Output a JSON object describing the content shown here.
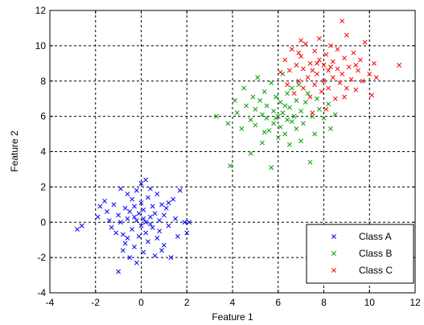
{
  "chart_data": {
    "type": "scatter",
    "xlabel": "Feature 1",
    "ylabel": "Feature 2",
    "xlim": [
      -4,
      12
    ],
    "ylim": [
      -4,
      12
    ],
    "xticks": [
      -4,
      -2,
      0,
      2,
      4,
      6,
      8,
      10,
      12
    ],
    "yticks": [
      -4,
      -2,
      0,
      2,
      4,
      6,
      8,
      10,
      12
    ],
    "grid": true,
    "legend_position": "bottom-right",
    "marker": "x",
    "series": [
      {
        "name": "Class A",
        "color": "#0000ff",
        "points": [
          [
            -2.8,
            -0.4
          ],
          [
            -2.6,
            -0.2
          ],
          [
            -1.9,
            0.3
          ],
          [
            -1.6,
            1.2
          ],
          [
            -1.5,
            0.6
          ],
          [
            -1.4,
            0.1
          ],
          [
            -1.3,
            -0.3
          ],
          [
            -1.2,
            1.0
          ],
          [
            -1.1,
            -0.6
          ],
          [
            -1.0,
            0.4
          ],
          [
            -0.9,
            1.9
          ],
          [
            -0.9,
            0.0
          ],
          [
            -0.8,
            -0.7
          ],
          [
            -0.7,
            0.8
          ],
          [
            -0.7,
            -1.2
          ],
          [
            -0.6,
            1.6
          ],
          [
            -0.6,
            0.2
          ],
          [
            -0.5,
            -2.0
          ],
          [
            -0.5,
            0.6
          ],
          [
            -0.4,
            1.3
          ],
          [
            -0.4,
            -0.4
          ],
          [
            -0.3,
            0.9
          ],
          [
            -0.3,
            -1.4
          ],
          [
            -0.2,
            0.1
          ],
          [
            -0.2,
            1.8
          ],
          [
            -0.1,
            -0.8
          ],
          [
            -0.1,
            0.5
          ],
          [
            0.0,
            2.2
          ],
          [
            0.0,
            -0.2
          ],
          [
            0.0,
            1.1
          ],
          [
            0.1,
            -1.7
          ],
          [
            0.1,
            0.7
          ],
          [
            0.2,
            0.0
          ],
          [
            0.2,
            -0.6
          ],
          [
            0.3,
            1.4
          ],
          [
            0.3,
            -1.1
          ],
          [
            0.4,
            0.3
          ],
          [
            0.4,
            1.9
          ],
          [
            0.5,
            -0.3
          ],
          [
            0.5,
            0.9
          ],
          [
            0.6,
            -1.9
          ],
          [
            0.6,
            0.5
          ],
          [
            0.7,
            -0.9
          ],
          [
            0.7,
            1.6
          ],
          [
            0.8,
            0.1
          ],
          [
            0.8,
            -0.5
          ],
          [
            0.9,
            1.0
          ],
          [
            1.0,
            -1.3
          ],
          [
            1.0,
            0.4
          ],
          [
            1.1,
            0.8
          ],
          [
            1.2,
            -0.2
          ],
          [
            1.3,
            -2.0
          ],
          [
            1.4,
            1.3
          ],
          [
            1.5,
            0.2
          ],
          [
            1.6,
            -0.8
          ],
          [
            1.7,
            1.8
          ],
          [
            1.9,
            0.0
          ],
          [
            2.0,
            -0.6
          ],
          [
            2.1,
            0.0
          ],
          [
            -1.0,
            -2.8
          ],
          [
            -0.8,
            -1.6
          ],
          [
            -0.2,
            -2.3
          ],
          [
            0.2,
            2.4
          ],
          [
            -0.6,
            -0.9
          ],
          [
            0.4,
            -0.1
          ],
          [
            -1.8,
            0.9
          ],
          [
            1.2,
            1.1
          ],
          [
            -0.3,
            0.3
          ],
          [
            0.9,
            -1.6
          ],
          [
            0.1,
            0.2
          ]
        ]
      },
      {
        "name": "Class B",
        "color": "#00a000",
        "points": [
          [
            3.3,
            6.0
          ],
          [
            3.8,
            5.6
          ],
          [
            3.9,
            3.2
          ],
          [
            4.1,
            6.9
          ],
          [
            4.2,
            6.2
          ],
          [
            4.4,
            5.3
          ],
          [
            4.5,
            7.6
          ],
          [
            4.6,
            6.6
          ],
          [
            4.8,
            5.8
          ],
          [
            4.8,
            3.9
          ],
          [
            4.9,
            7.1
          ],
          [
            5.0,
            6.4
          ],
          [
            5.0,
            5.5
          ],
          [
            5.1,
            8.2
          ],
          [
            5.2,
            6.9
          ],
          [
            5.3,
            6.1
          ],
          [
            5.3,
            4.5
          ],
          [
            5.4,
            7.4
          ],
          [
            5.5,
            5.9
          ],
          [
            5.5,
            6.6
          ],
          [
            5.6,
            5.2
          ],
          [
            5.7,
            7.9
          ],
          [
            5.7,
            3.1
          ],
          [
            5.8,
            6.3
          ],
          [
            5.8,
            5.6
          ],
          [
            5.9,
            7.1
          ],
          [
            6.0,
            6.0
          ],
          [
            6.0,
            4.8
          ],
          [
            6.1,
            6.8
          ],
          [
            6.1,
            5.4
          ],
          [
            6.2,
            8.4
          ],
          [
            6.2,
            6.2
          ],
          [
            6.3,
            5.0
          ],
          [
            6.4,
            7.3
          ],
          [
            6.4,
            5.8
          ],
          [
            6.5,
            6.5
          ],
          [
            6.5,
            4.4
          ],
          [
            6.6,
            7.6
          ],
          [
            6.7,
            6.0
          ],
          [
            6.8,
            5.3
          ],
          [
            6.8,
            6.9
          ],
          [
            6.9,
            7.8
          ],
          [
            7.0,
            6.3
          ],
          [
            7.1,
            5.6
          ],
          [
            7.2,
            6.8
          ],
          [
            7.3,
            7.3
          ],
          [
            7.4,
            3.4
          ],
          [
            7.5,
            6.0
          ],
          [
            7.6,
            5.0
          ],
          [
            7.7,
            7.0
          ],
          [
            7.8,
            6.4
          ],
          [
            8.0,
            5.9
          ],
          [
            8.2,
            6.7
          ],
          [
            8.3,
            5.3
          ],
          [
            8.5,
            6.1
          ],
          [
            6.3,
            6.6
          ],
          [
            5.9,
            5.9
          ],
          [
            6.6,
            5.7
          ],
          [
            5.4,
            5.1
          ],
          [
            7.0,
            4.6
          ]
        ]
      },
      {
        "name": "Class C",
        "color": "#ff0000",
        "points": [
          [
            6.1,
            8.5
          ],
          [
            6.3,
            9.2
          ],
          [
            6.4,
            7.8
          ],
          [
            6.5,
            8.6
          ],
          [
            6.6,
            9.8
          ],
          [
            6.7,
            7.3
          ],
          [
            6.8,
            8.9
          ],
          [
            6.9,
            8.0
          ],
          [
            7.0,
            9.4
          ],
          [
            7.1,
            7.6
          ],
          [
            7.1,
            8.7
          ],
          [
            7.2,
            10.1
          ],
          [
            7.3,
            8.2
          ],
          [
            7.4,
            9.0
          ],
          [
            7.4,
            7.1
          ],
          [
            7.5,
            8.6
          ],
          [
            7.6,
            9.7
          ],
          [
            7.6,
            7.8
          ],
          [
            7.7,
            8.4
          ],
          [
            7.8,
            9.2
          ],
          [
            7.8,
            10.4
          ],
          [
            7.9,
            7.4
          ],
          [
            8.0,
            8.9
          ],
          [
            8.0,
            8.0
          ],
          [
            8.1,
            9.5
          ],
          [
            8.2,
            7.6
          ],
          [
            8.2,
            8.6
          ],
          [
            8.3,
            10.0
          ],
          [
            8.4,
            8.2
          ],
          [
            8.4,
            9.1
          ],
          [
            8.5,
            7.0
          ],
          [
            8.6,
            8.7
          ],
          [
            8.6,
            9.8
          ],
          [
            8.7,
            7.9
          ],
          [
            8.8,
            11.4
          ],
          [
            8.8,
            8.4
          ],
          [
            8.9,
            9.3
          ],
          [
            9.0,
            7.6
          ],
          [
            9.0,
            10.6
          ],
          [
            9.1,
            8.8
          ],
          [
            9.2,
            8.1
          ],
          [
            9.3,
            9.6
          ],
          [
            9.4,
            7.5
          ],
          [
            9.5,
            8.6
          ],
          [
            9.6,
            9.2
          ],
          [
            9.7,
            8.0
          ],
          [
            9.8,
            10.2
          ],
          [
            10.0,
            8.4
          ],
          [
            10.1,
            7.2
          ],
          [
            10.2,
            9.0
          ],
          [
            10.3,
            8.2
          ],
          [
            11.3,
            8.9
          ],
          [
            8.1,
            6.4
          ],
          [
            7.5,
            6.2
          ],
          [
            8.9,
            7.1
          ],
          [
            7.0,
            10.3
          ],
          [
            9.4,
            8.9
          ],
          [
            8.3,
            8.8
          ],
          [
            7.7,
            9.0
          ],
          [
            6.9,
            9.6
          ]
        ]
      }
    ]
  }
}
